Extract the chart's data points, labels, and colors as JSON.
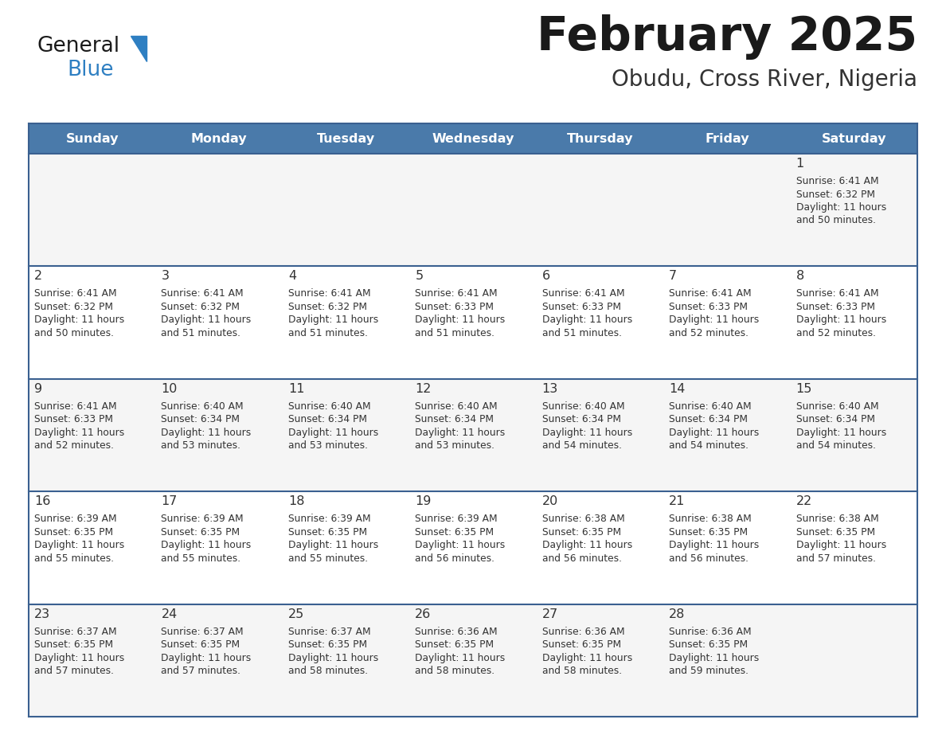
{
  "title": "February 2025",
  "subtitle": "Obudu, Cross River, Nigeria",
  "header_bg": "#4a7aaa",
  "header_text_color": "#FFFFFF",
  "cell_bg_week1": "#f5f5f5",
  "cell_bg_week2": "#ffffff",
  "cell_bg_week3": "#f5f5f5",
  "cell_bg_week4": "#ffffff",
  "cell_bg_week5": "#f5f5f5",
  "separator_color": "#3a6090",
  "day_number_color": "#333333",
  "cell_text_color": "#333333",
  "title_color": "#1a1a1a",
  "subtitle_color": "#333333",
  "days_of_week": [
    "Sunday",
    "Monday",
    "Tuesday",
    "Wednesday",
    "Thursday",
    "Friday",
    "Saturday"
  ],
  "weeks": [
    [
      {
        "day": null,
        "sunrise": null,
        "sunset": null,
        "daylight": null
      },
      {
        "day": null,
        "sunrise": null,
        "sunset": null,
        "daylight": null
      },
      {
        "day": null,
        "sunrise": null,
        "sunset": null,
        "daylight": null
      },
      {
        "day": null,
        "sunrise": null,
        "sunset": null,
        "daylight": null
      },
      {
        "day": null,
        "sunrise": null,
        "sunset": null,
        "daylight": null
      },
      {
        "day": null,
        "sunrise": null,
        "sunset": null,
        "daylight": null
      },
      {
        "day": 1,
        "sunrise": "6:41 AM",
        "sunset": "6:32 PM",
        "daylight": "11 hours\nand 50 minutes."
      }
    ],
    [
      {
        "day": 2,
        "sunrise": "6:41 AM",
        "sunset": "6:32 PM",
        "daylight": "11 hours\nand 50 minutes."
      },
      {
        "day": 3,
        "sunrise": "6:41 AM",
        "sunset": "6:32 PM",
        "daylight": "11 hours\nand 51 minutes."
      },
      {
        "day": 4,
        "sunrise": "6:41 AM",
        "sunset": "6:32 PM",
        "daylight": "11 hours\nand 51 minutes."
      },
      {
        "day": 5,
        "sunrise": "6:41 AM",
        "sunset": "6:33 PM",
        "daylight": "11 hours\nand 51 minutes."
      },
      {
        "day": 6,
        "sunrise": "6:41 AM",
        "sunset": "6:33 PM",
        "daylight": "11 hours\nand 51 minutes."
      },
      {
        "day": 7,
        "sunrise": "6:41 AM",
        "sunset": "6:33 PM",
        "daylight": "11 hours\nand 52 minutes."
      },
      {
        "day": 8,
        "sunrise": "6:41 AM",
        "sunset": "6:33 PM",
        "daylight": "11 hours\nand 52 minutes."
      }
    ],
    [
      {
        "day": 9,
        "sunrise": "6:41 AM",
        "sunset": "6:33 PM",
        "daylight": "11 hours\nand 52 minutes."
      },
      {
        "day": 10,
        "sunrise": "6:40 AM",
        "sunset": "6:34 PM",
        "daylight": "11 hours\nand 53 minutes."
      },
      {
        "day": 11,
        "sunrise": "6:40 AM",
        "sunset": "6:34 PM",
        "daylight": "11 hours\nand 53 minutes."
      },
      {
        "day": 12,
        "sunrise": "6:40 AM",
        "sunset": "6:34 PM",
        "daylight": "11 hours\nand 53 minutes."
      },
      {
        "day": 13,
        "sunrise": "6:40 AM",
        "sunset": "6:34 PM",
        "daylight": "11 hours\nand 54 minutes."
      },
      {
        "day": 14,
        "sunrise": "6:40 AM",
        "sunset": "6:34 PM",
        "daylight": "11 hours\nand 54 minutes."
      },
      {
        "day": 15,
        "sunrise": "6:40 AM",
        "sunset": "6:34 PM",
        "daylight": "11 hours\nand 54 minutes."
      }
    ],
    [
      {
        "day": 16,
        "sunrise": "6:39 AM",
        "sunset": "6:35 PM",
        "daylight": "11 hours\nand 55 minutes."
      },
      {
        "day": 17,
        "sunrise": "6:39 AM",
        "sunset": "6:35 PM",
        "daylight": "11 hours\nand 55 minutes."
      },
      {
        "day": 18,
        "sunrise": "6:39 AM",
        "sunset": "6:35 PM",
        "daylight": "11 hours\nand 55 minutes."
      },
      {
        "day": 19,
        "sunrise": "6:39 AM",
        "sunset": "6:35 PM",
        "daylight": "11 hours\nand 56 minutes."
      },
      {
        "day": 20,
        "sunrise": "6:38 AM",
        "sunset": "6:35 PM",
        "daylight": "11 hours\nand 56 minutes."
      },
      {
        "day": 21,
        "sunrise": "6:38 AM",
        "sunset": "6:35 PM",
        "daylight": "11 hours\nand 56 minutes."
      },
      {
        "day": 22,
        "sunrise": "6:38 AM",
        "sunset": "6:35 PM",
        "daylight": "11 hours\nand 57 minutes."
      }
    ],
    [
      {
        "day": 23,
        "sunrise": "6:37 AM",
        "sunset": "6:35 PM",
        "daylight": "11 hours\nand 57 minutes."
      },
      {
        "day": 24,
        "sunrise": "6:37 AM",
        "sunset": "6:35 PM",
        "daylight": "11 hours\nand 57 minutes."
      },
      {
        "day": 25,
        "sunrise": "6:37 AM",
        "sunset": "6:35 PM",
        "daylight": "11 hours\nand 58 minutes."
      },
      {
        "day": 26,
        "sunrise": "6:36 AM",
        "sunset": "6:35 PM",
        "daylight": "11 hours\nand 58 minutes."
      },
      {
        "day": 27,
        "sunrise": "6:36 AM",
        "sunset": "6:35 PM",
        "daylight": "11 hours\nand 58 minutes."
      },
      {
        "day": 28,
        "sunrise": "6:36 AM",
        "sunset": "6:35 PM",
        "daylight": "11 hours\nand 59 minutes."
      },
      {
        "day": null,
        "sunrise": null,
        "sunset": null,
        "daylight": null
      }
    ]
  ],
  "logo_general_color": "#1a1a1a",
  "logo_blue_color": "#2e7fc2",
  "logo_triangle_color": "#2e7fc2",
  "fig_width": 11.88,
  "fig_height": 9.18,
  "dpi": 100
}
